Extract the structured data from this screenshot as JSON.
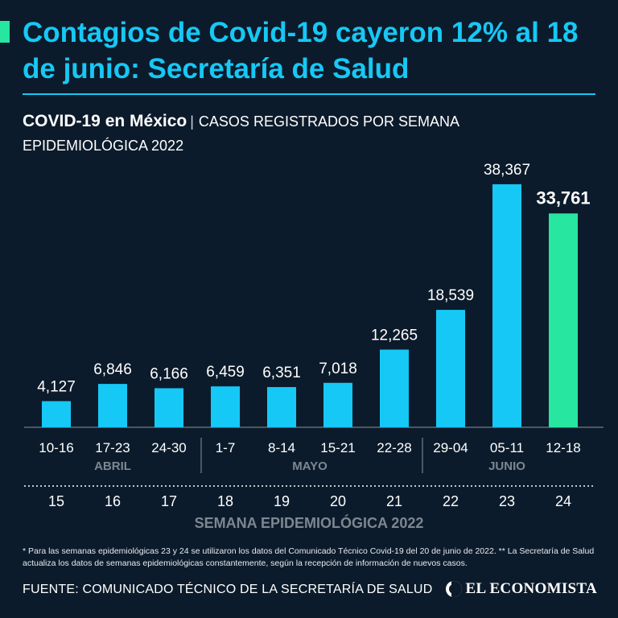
{
  "header": {
    "title": "Contagios de Covid-19 cayeron 12% al 18 de junio: Secretaría de Salud",
    "subtitle_strong": "COVID-19 en México",
    "subtitle_sep": "|",
    "subtitle_rest": "CASOS REGISTRADOS POR SEMANA EPIDEMIOLÓGICA 2022"
  },
  "colors": {
    "background": "#0c1b2b",
    "title": "#16c8f5",
    "bar": "#16c8f5",
    "highlight_bar": "#27e6a0",
    "accent": "#27e6a0",
    "month_label": "#7d8791"
  },
  "chart_data": {
    "type": "bar",
    "title": "COVID-19 en México | CASOS REGISTRADOS POR SEMANA EPIDEMIOLÓGICA 2022",
    "xlabel": "SEMANA EPIDEMIOLÓGICA 2022",
    "ylabel": "",
    "ylim": [
      0,
      38367
    ],
    "categories": [
      "10-16",
      "17-23",
      "24-30",
      "1-7",
      "8-14",
      "15-21",
      "22-28",
      "29-04",
      "05-11",
      "12-18"
    ],
    "week_numbers": [
      "15",
      "16",
      "17",
      "18",
      "19",
      "20",
      "21",
      "22",
      "23",
      "24"
    ],
    "values": [
      4127,
      6846,
      6166,
      6459,
      6351,
      7018,
      12265,
      18539,
      38367,
      33761
    ],
    "value_labels": [
      "4,127",
      "6,846",
      "6,166",
      "6,459",
      "6,351",
      "7,018",
      "12,265",
      "18,539",
      "38,367",
      "33,761"
    ],
    "highlight_index": 9,
    "months": [
      {
        "label": "ABRIL",
        "start": 0,
        "end": 2
      },
      {
        "label": "MAYO",
        "start": 3,
        "end": 6
      },
      {
        "label": "JUNIO",
        "start": 7,
        "end": 9
      }
    ],
    "grid": false
  },
  "footer": {
    "note": "* Para las semanas epidemiológicas 23 y 24 se utilizaron los datos del Comunicado Técnico Covid-19 del 20 de junio de 2022. ** La Secretaría de Salud actualiza los datos de semanas epidemiológicas constantemente, según la recepción de información de nuevos casos.",
    "source": "FUENTE: COMUNICADO TÉCNICO DE LA SECRETARÍA DE SALUD",
    "logo_text": "EL ECONOMISTA"
  }
}
